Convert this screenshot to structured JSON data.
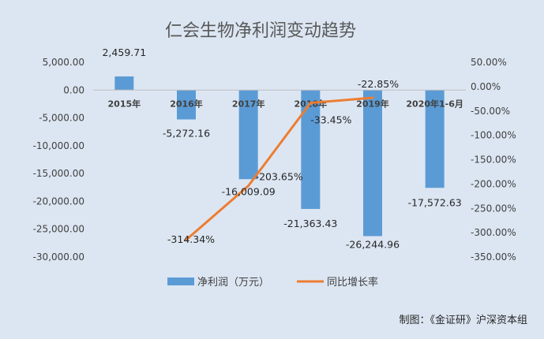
{
  "chart_data": {
    "type": "bar",
    "title": "仁会生物净利润变动趋势",
    "categories": [
      "2015年",
      "2016年",
      "2017年",
      "2018年",
      "2019年",
      "2020年1-6月"
    ],
    "series": [
      {
        "name": "净利润（万元）",
        "type": "bar",
        "axis": "left",
        "color": "#5b9bd5",
        "values": [
          2459.71,
          -5272.16,
          -16009.09,
          -21363.43,
          -26244.96,
          -17572.63
        ],
        "labels": [
          "2,459.71",
          "-5,272.16",
          "-16,009.09",
          "-21,363.43",
          "-26,244.96",
          "-17,572.63"
        ]
      },
      {
        "name": "同比增长率",
        "type": "line",
        "axis": "right",
        "color": "#ed7d31",
        "values": [
          null,
          -314.34,
          -203.65,
          -33.45,
          -22.85,
          null
        ],
        "labels": [
          "",
          "-314.34%",
          "-203.65%",
          "-33.45%",
          "-22.85%",
          ""
        ]
      }
    ],
    "left_axis": {
      "ylim": [
        -30000,
        5000
      ],
      "ticks": [
        "5,000.00",
        "0.00",
        "-5,000.00",
        "-10,000.00",
        "-15,000.00",
        "-20,000.00",
        "-25,000.00",
        "-30,000.00"
      ]
    },
    "right_axis": {
      "ylim": [
        -350,
        50
      ],
      "ticks": [
        "50.00%",
        "0.00%",
        "-50.00%",
        "-100.00%",
        "-150.00%",
        "-200.00%",
        "-250.00%",
        "-300.00%",
        "-350.00%"
      ]
    },
    "legend_position": "bottom",
    "grid": false
  },
  "credit": "制图：《金证研》沪深资本组"
}
